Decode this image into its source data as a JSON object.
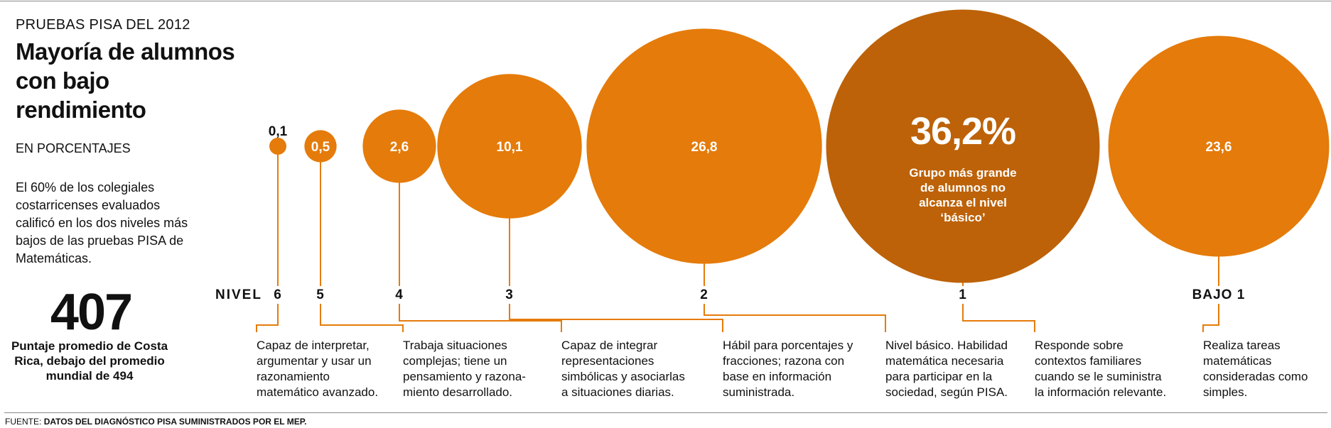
{
  "header": {
    "kicker": "PRUEBAS PISA DEL 2012",
    "title": "Mayoría de alumnos con bajo rendimiento",
    "units": "EN PORCENTAJES",
    "intro": "El 60% de los colegiales costarricenses evaluados calificó en los dos niveles más bajos de las pruebas PISA de Matemáticas."
  },
  "summary": {
    "value": "407",
    "caption": "Puntaje promedio de Costa Rica, debajo del promedio mundial de 494"
  },
  "source": {
    "label": "FUENTE:",
    "text": "DATOS DEL DIAGNÓSTICO PISA SUMINISTRADOS POR EL MEP."
  },
  "colors": {
    "bubble": "#E57B0A",
    "highlight": "#BD6208",
    "line": "#E57B0A"
  },
  "chart_data": {
    "type": "bubble",
    "axis_label": "NIVEL",
    "categories": [
      "6",
      "5",
      "4",
      "3",
      "2",
      "1",
      "BAJO 1"
    ],
    "values": [
      0.1,
      0.5,
      2.6,
      10.1,
      26.8,
      36.2,
      23.6
    ],
    "value_labels": [
      "0,1",
      "0,5",
      "2,6",
      "10,1",
      "26,8",
      "36,2%",
      "23,6"
    ],
    "highlight_index": 5,
    "highlight_note": "Grupo más grande de alumnos no alcanza el nivel ‘básico’",
    "descriptions": [
      "Capaz de interpretar, argumentar y usar un razonamiento matemático avanzado.",
      "Trabaja situaciones complejas; tiene un pensamiento y razona-miento desarrollado.",
      "Capaz de integrar representaciones simbólicas y asociarlas a situaciones diarias.",
      "Hábil para porcentajes y fracciones; razona con base en información suministrada.",
      "Nivel básico. Habilidad matemática necesaria para participar en la sociedad, según PISA.",
      "Responde sobre contextos familiares cuando se le suministra la información relevante.",
      "Realiza tareas matemáticas consideradas como simples."
    ],
    "description_lines": [
      [
        "Capaz de interpretar,",
        "argumentar y usar un",
        "razonamiento",
        "matemático avanzado."
      ],
      [
        "Trabaja situaciones",
        "complejas; tiene un",
        "pensamiento y razona-",
        "miento desarrollado."
      ],
      [
        "Capaz de integrar",
        "representaciones",
        "simbólicas y asociarlas",
        "a situaciones diarias."
      ],
      [
        "Hábil para porcentajes y",
        "fracciones; razona con",
        "base en información",
        "suministrada."
      ],
      [
        "Nivel básico. Habilidad",
        "matemática necesaria",
        "para participar en la",
        "sociedad, según PISA."
      ],
      [
        "Responde sobre",
        "contextos familiares",
        "cuando se le suministra",
        "la información relevante."
      ],
      [
        "Realiza tareas",
        "matemáticas",
        "consideradas como",
        "simples."
      ]
    ]
  }
}
